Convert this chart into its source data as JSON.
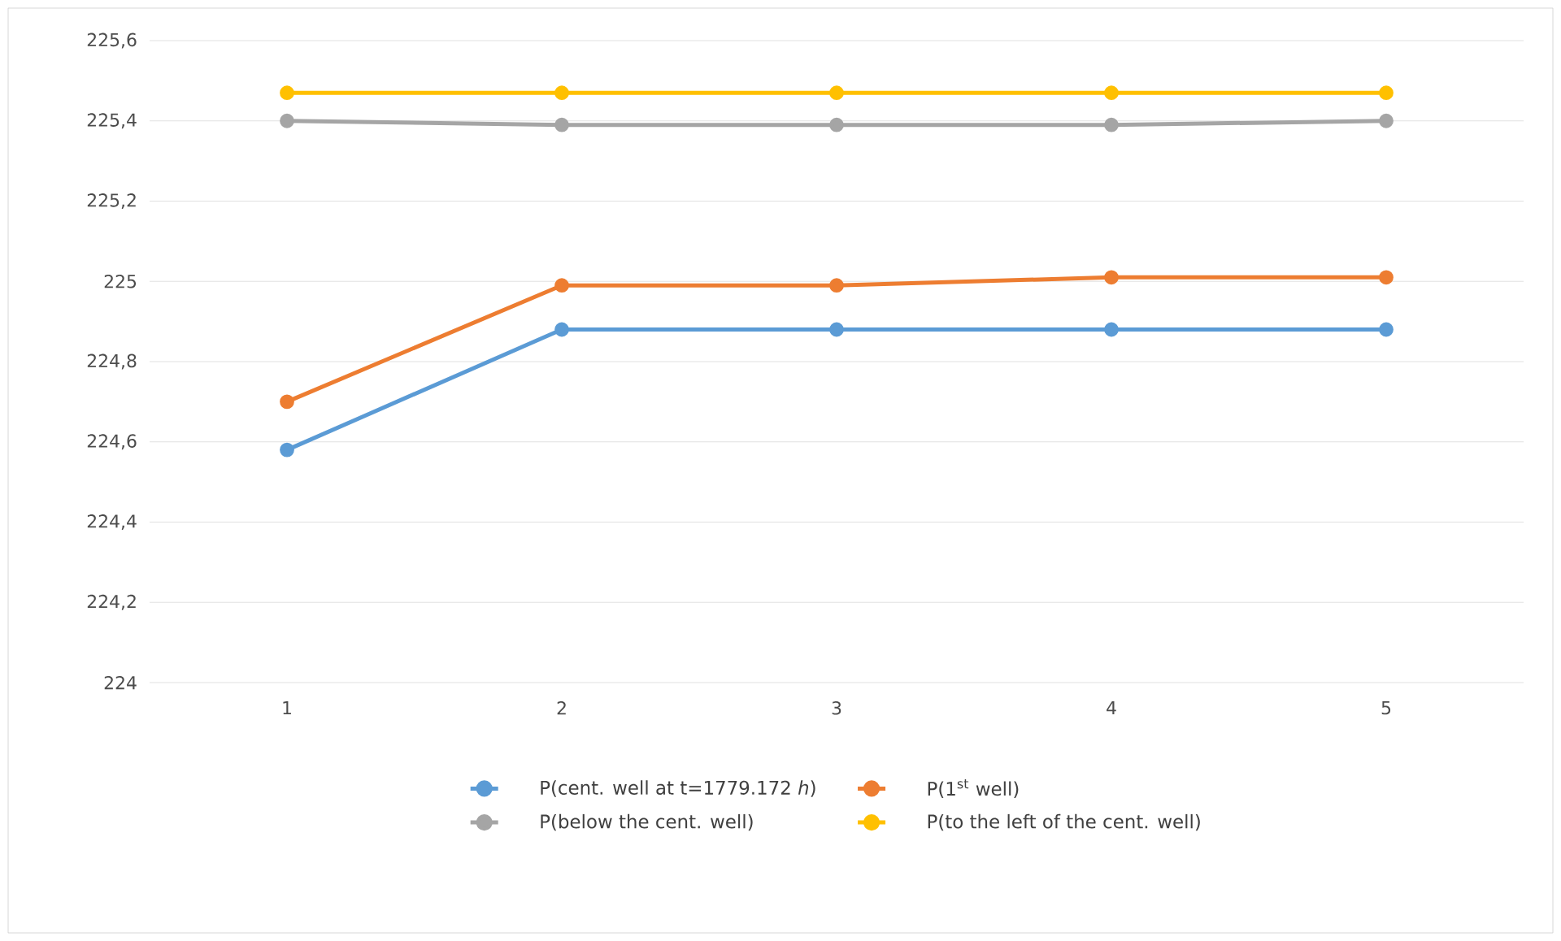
{
  "chart_data": {
    "type": "line",
    "categories": [
      "1",
      "2",
      "3",
      "4",
      "5"
    ],
    "series": [
      {
        "name": "P(cent. well at t=1779.172 *h*)",
        "color": "#5b9bd5",
        "values": [
          224.58,
          224.88,
          224.88,
          224.88,
          224.88
        ]
      },
      {
        "name": "P(1$^{st}$ well)",
        "color": "#ed7d31",
        "values": [
          224.7,
          224.99,
          224.99,
          225.01,
          225.01
        ]
      },
      {
        "name": "P(below the cent. well)",
        "color": "#a5a5a5",
        "values": [
          225.4,
          225.39,
          225.39,
          225.39,
          225.4
        ]
      },
      {
        "name": "P(to the left of the cent. well)",
        "color": "#ffc000",
        "values": [
          225.47,
          225.47,
          225.47,
          225.47,
          225.47
        ]
      }
    ],
    "ylim": [
      224,
      225.6
    ],
    "yticks": [
      {
        "value": 224,
        "label": "224"
      },
      {
        "value": 224.2,
        "label": "224,2"
      },
      {
        "value": 224.4,
        "label": "224,4"
      },
      {
        "value": 224.6,
        "label": "224,6"
      },
      {
        "value": 224.8,
        "label": "224,8"
      },
      {
        "value": 225,
        "label": "225"
      },
      {
        "value": 225.2,
        "label": "225,2"
      },
      {
        "value": 225.4,
        "label": "225,4"
      },
      {
        "value": 225.6,
        "label": "225,6"
      }
    ],
    "grid": "y",
    "legend": "bottom",
    "marker": "circle",
    "line_style": "solid"
  }
}
